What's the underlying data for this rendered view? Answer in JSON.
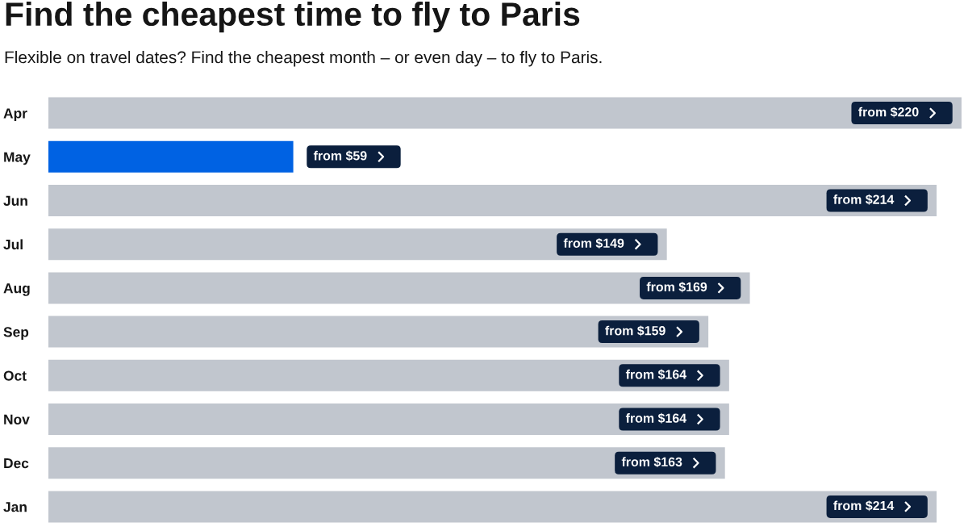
{
  "chart_data": {
    "type": "bar",
    "orientation": "horizontal",
    "title": "Find the cheapest time to fly to Paris",
    "subtitle": "Flexible on travel dates? Find the cheapest month – or even day – to fly to Paris.",
    "categories": [
      "Apr",
      "May",
      "Jun",
      "Jul",
      "Aug",
      "Sep",
      "Oct",
      "Nov",
      "Dec",
      "Jan"
    ],
    "values": [
      220,
      59,
      214,
      149,
      169,
      159,
      164,
      164,
      163,
      214
    ],
    "colors": [
      "#c1c6ce",
      "#0062e3",
      "#c1c6ce",
      "#c1c6ce",
      "#c1c6ce",
      "#c1c6ce",
      "#c1c6ce",
      "#c1c6ce",
      "#c1c6ce",
      "#c1c6ce"
    ],
    "value_labels": [
      "from $220",
      "from $59",
      "from $214",
      "from $149",
      "from $169",
      "from $159",
      "from $164",
      "from $164",
      "from $163",
      "from $214"
    ],
    "xlim": [
      0,
      220
    ],
    "tick_labels": "y"
  }
}
